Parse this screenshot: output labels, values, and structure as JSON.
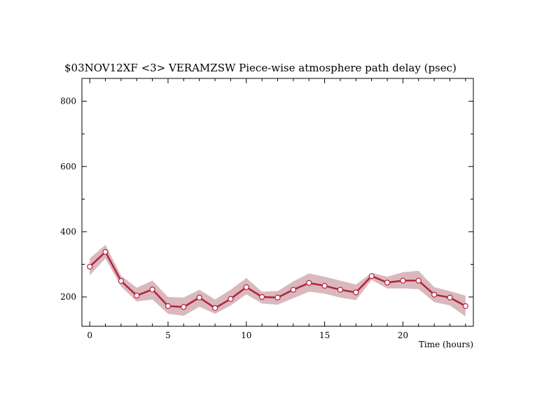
{
  "chart_data": {
    "type": "line",
    "title": "$03NOV12XF <3>  VERAMZSW  Piece-wise atmosphere path delay (psec)",
    "xlabel": "Time (hours)",
    "ylabel": "",
    "xlim": [
      -0.5,
      24.5
    ],
    "ylim": [
      110,
      870
    ],
    "x_ticks": [
      0,
      5,
      10,
      15,
      20
    ],
    "y_ticks": [
      200,
      400,
      600,
      800
    ],
    "x_tick_labels": [
      "0",
      "5",
      "10",
      "15",
      "20"
    ],
    "y_tick_labels": [
      "200",
      "400",
      "600",
      "800"
    ],
    "grid": false,
    "colors": {
      "line": "#b5223c",
      "band": "#d9b9be",
      "marker_fill": "#ffffff"
    },
    "series": [
      {
        "x": [
          0,
          1,
          2,
          3,
          4,
          5,
          6,
          7,
          8,
          9,
          10,
          11,
          12,
          13,
          14,
          15,
          16,
          17,
          18,
          19,
          20,
          21,
          22,
          23,
          24
        ],
        "values": [
          293,
          338,
          249,
          204,
          223,
          172,
          169,
          198,
          166,
          194,
          230,
          200,
          198,
          222,
          243,
          234,
          222,
          214,
          264,
          244,
          250,
          250,
          207,
          198,
          172
        ],
        "band_upper": [
          318,
          360,
          265,
          228,
          250,
          200,
          198,
          222,
          192,
          222,
          258,
          216,
          218,
          248,
          272,
          262,
          250,
          238,
          274,
          262,
          276,
          280,
          230,
          218,
          204
        ],
        "band_lower": [
          266,
          318,
          232,
          186,
          192,
          148,
          142,
          170,
          148,
          174,
          208,
          180,
          176,
          196,
          216,
          210,
          198,
          190,
          252,
          226,
          226,
          224,
          184,
          174,
          140
        ]
      }
    ]
  }
}
